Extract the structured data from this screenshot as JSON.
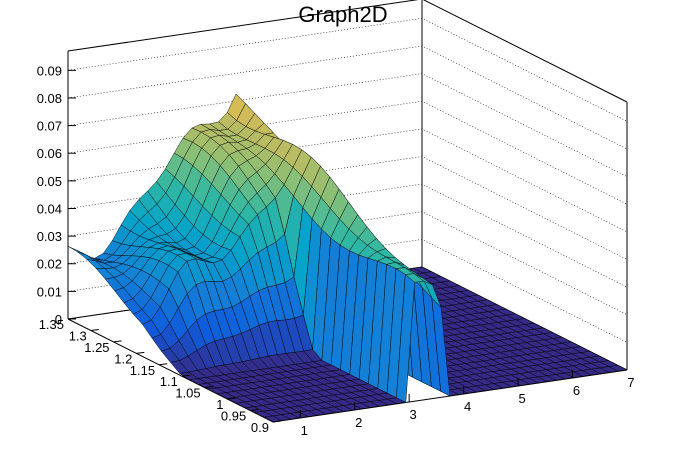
{
  "chart_data": {
    "type": "surface",
    "title": "Graph2D",
    "xlabel": "",
    "ylabel": "",
    "zlabel": "",
    "grid": true,
    "x_range": [
      0.5,
      7
    ],
    "y_range": [
      0.9,
      1.35
    ],
    "z_range": [
      0,
      0.097
    ],
    "x_ticks": [
      "1",
      "2",
      "3",
      "4",
      "5",
      "6",
      "7"
    ],
    "y_ticks": [
      "0.9",
      "0.95",
      "1",
      "1.05",
      "1.1",
      "1.15",
      "1.2",
      "1.25",
      "1.3",
      "1.35"
    ],
    "z_ticks": [
      "0",
      "0.01",
      "0.02",
      "0.03",
      "0.04",
      "0.05",
      "0.06",
      "0.07",
      "0.08",
      "0.09"
    ],
    "colormap": [
      "#352a87",
      "#0f5cdd",
      "#1481d6",
      "#06a4ca",
      "#2eb7a4",
      "#87bf77",
      "#d1bb59",
      "#fec832",
      "#f9fb0e"
    ],
    "surface_description": "Surface is near zero for x >= ~3.8. For x below ~3.5 values rise from ~0.02 at x=0.5 up to ~0.085 near x=3.5, higher at large y (~1.35) than at small y; the region x<3 at low y (<1.1) drops to 0.",
    "peak": {
      "x": 3.6,
      "y": 1.35,
      "z": 0.088
    }
  }
}
